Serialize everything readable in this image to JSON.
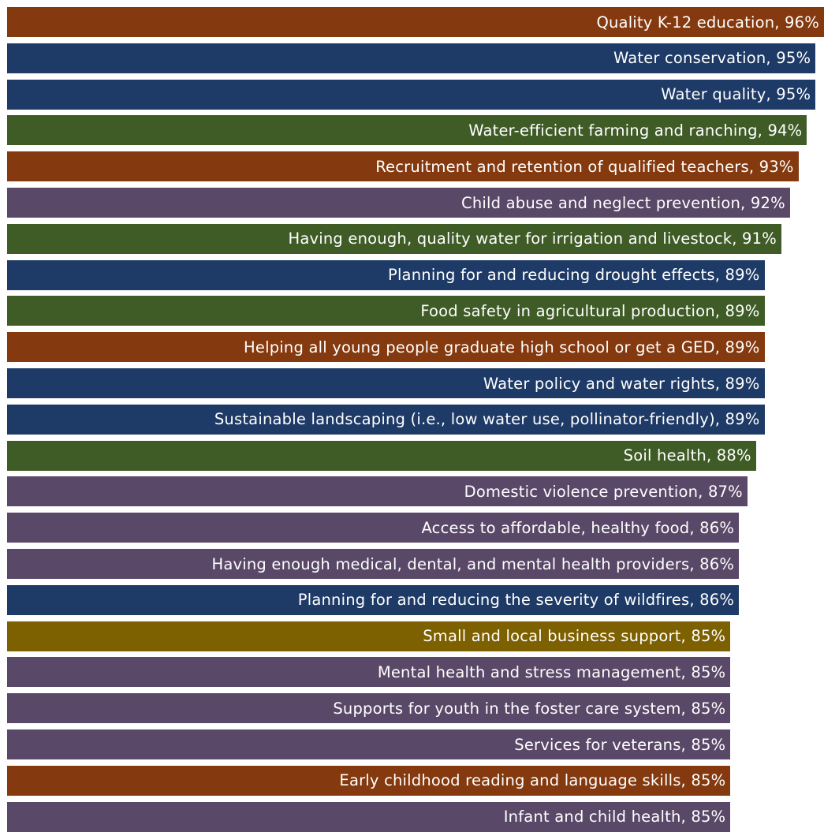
{
  "chart_data": {
    "type": "bar",
    "orientation": "horizontal",
    "bars": [
      {
        "label": "Quality K-12 education, 96%",
        "category": "Quality K-12 education",
        "value": 96,
        "color": "#84390f"
      },
      {
        "label": "Water conservation, 95%",
        "category": "Water conservation",
        "value": 95,
        "color": "#1e3a66"
      },
      {
        "label": "Water quality, 95%",
        "category": "Water quality",
        "value": 95,
        "color": "#1e3a66"
      },
      {
        "label": "Water-efficient farming and ranching, 94%",
        "category": "Water-efficient farming and ranching",
        "value": 94,
        "color": "#3f5c27"
      },
      {
        "label": "Recruitment and retention of qualified teachers, 93%",
        "category": "Recruitment and retention of qualified teachers",
        "value": 93,
        "color": "#84390f"
      },
      {
        "label": "Child abuse and neglect prevention, 92%",
        "category": "Child abuse and neglect prevention",
        "value": 92,
        "color": "#5a4868"
      },
      {
        "label": "Having enough, quality water for irrigation and livestock, 91%",
        "category": "Having enough, quality water for irrigation and livestock",
        "value": 91,
        "color": "#3f5c27"
      },
      {
        "label": "Planning for and reducing drought effects, 89%",
        "category": "Planning for and reducing drought effects",
        "value": 89,
        "color": "#1e3a66"
      },
      {
        "label": "Food safety in agricultural production, 89%",
        "category": "Food safety in agricultural production",
        "value": 89,
        "color": "#3f5c27"
      },
      {
        "label": "Helping all young people graduate high school or get a GED, 89%",
        "category": "Helping all young people graduate high school or get a GED",
        "value": 89,
        "color": "#84390f"
      },
      {
        "label": "Water policy and water rights, 89%",
        "category": "Water policy and water rights",
        "value": 89,
        "color": "#1e3a66"
      },
      {
        "label": "Sustainable landscaping (i.e., low water use, pollinator-friendly), 89%",
        "category": "Sustainable landscaping (i.e., low water use, pollinator-friendly)",
        "value": 89,
        "color": "#1e3a66"
      },
      {
        "label": "Soil health, 88%",
        "category": "Soil health",
        "value": 88,
        "color": "#3f5c27"
      },
      {
        "label": "Domestic violence prevention, 87%",
        "category": "Domestic violence prevention",
        "value": 87,
        "color": "#5a4868"
      },
      {
        "label": "Access to affordable, healthy food, 86%",
        "category": "Access to affordable, healthy food",
        "value": 86,
        "color": "#5a4868"
      },
      {
        "label": "Having enough medical, dental, and mental health providers, 86%",
        "category": "Having enough medical, dental, and mental health providers",
        "value": 86,
        "color": "#5a4868"
      },
      {
        "label": "Planning for and reducing the severity of wildfires, 86%",
        "category": "Planning for and reducing the severity of wildfires",
        "value": 86,
        "color": "#1e3a66"
      },
      {
        "label": "Small and local business support, 85%",
        "category": "Small and local business support",
        "value": 85,
        "color": "#7d6000"
      },
      {
        "label": "Mental health and stress management, 85%",
        "category": "Mental health and stress management",
        "value": 85,
        "color": "#5a4868"
      },
      {
        "label": "Supports for youth in the foster care system, 85%",
        "category": "Supports for youth in the foster care system",
        "value": 85,
        "color": "#5a4868"
      },
      {
        "label": "Services for veterans, 85%",
        "category": "Services for veterans",
        "value": 85,
        "color": "#5a4868"
      },
      {
        "label": "Early childhood reading and language skills, 85%",
        "category": "Early childhood reading and language skills",
        "value": 85,
        "color": "#84390f"
      },
      {
        "label": "Infant and child health, 85%",
        "category": "Infant and child health",
        "value": 85,
        "color": "#5a4868"
      }
    ],
    "xlim": [
      0,
      96
    ],
    "grid": false,
    "legend": "none"
  }
}
